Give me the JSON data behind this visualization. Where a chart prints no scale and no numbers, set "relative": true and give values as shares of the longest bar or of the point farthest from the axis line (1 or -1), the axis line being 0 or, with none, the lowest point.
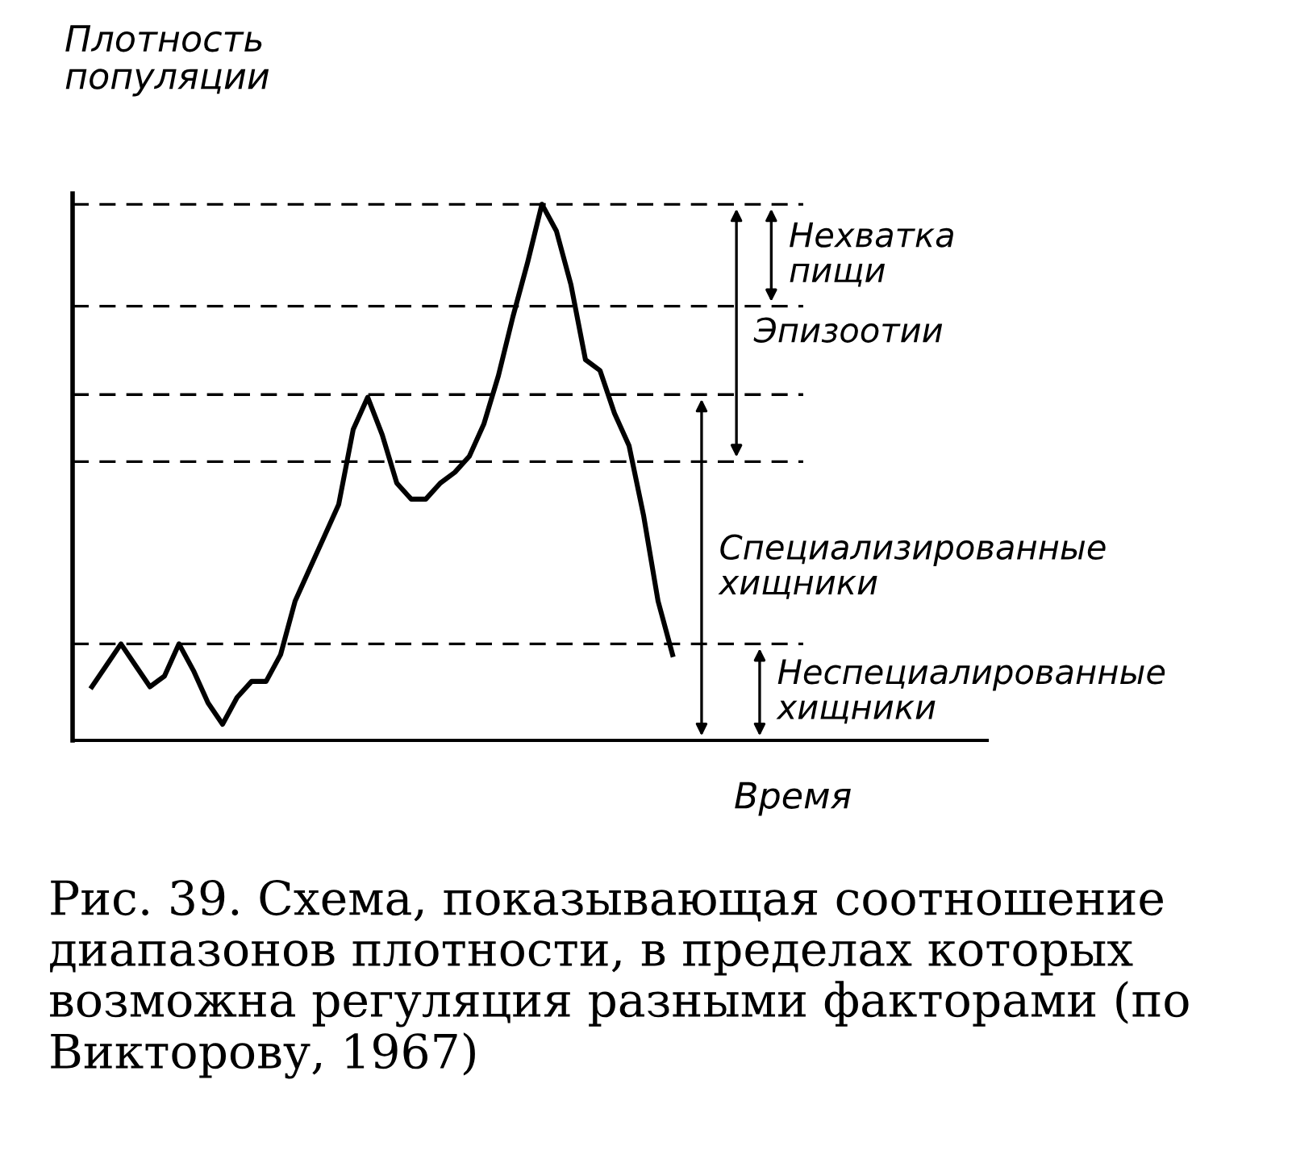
{
  "chart_data": {
    "type": "line",
    "relative": true,
    "ylabel": "Плотность\nпопуляции",
    "xlabel": "Время",
    "categories": [
      null,
      null,
      null,
      null,
      null,
      null,
      null,
      null,
      null,
      null,
      null,
      null,
      null,
      null,
      null,
      null,
      null,
      null,
      null,
      null,
      null,
      null,
      null,
      null,
      null,
      null,
      null,
      null,
      null,
      null,
      null,
      null,
      null,
      null,
      null,
      null,
      null,
      null,
      null,
      null,
      null
    ],
    "series": [
      {
        "color": "#000000",
        "values": [
          0.1,
          0.14,
          0.18,
          0.14,
          0.1,
          0.12,
          0.18,
          0.13,
          0.07,
          0.03,
          0.08,
          0.11,
          0.11,
          0.16,
          0.26,
          0.32,
          0.38,
          0.44,
          0.58,
          0.64,
          0.57,
          0.48,
          0.45,
          0.45,
          0.48,
          0.5,
          0.53,
          0.59,
          0.68,
          0.79,
          0.89,
          1.0,
          0.95,
          0.85,
          0.71,
          0.69,
          0.61,
          0.55,
          0.42,
          0.26,
          0.16
        ]
      }
    ],
    "ref_lines": [
      {
        "axis": "y",
        "value": 1.0,
        "line_style": "dashed"
      },
      {
        "axis": "y",
        "value": 0.81,
        "line_style": "dashed"
      },
      {
        "axis": "y",
        "value": 0.645,
        "line_style": "dashed"
      },
      {
        "axis": "y",
        "value": 0.52,
        "line_style": "dashed"
      },
      {
        "axis": "y",
        "value": 0.18,
        "line_style": "dashed"
      }
    ],
    "annotations": [
      "Нехватка\nпищи",
      "Эпизоотии",
      "Специализированные\nхищники",
      "Неспециалированные\nхищники",
      "Рис. 39. Схема, показывающая соотношение диапазонов плотности, в пределах которых возможна регуляция разными факторами (по Викторову, 1967)"
    ],
    "line_style": "solid",
    "marker": "none"
  }
}
